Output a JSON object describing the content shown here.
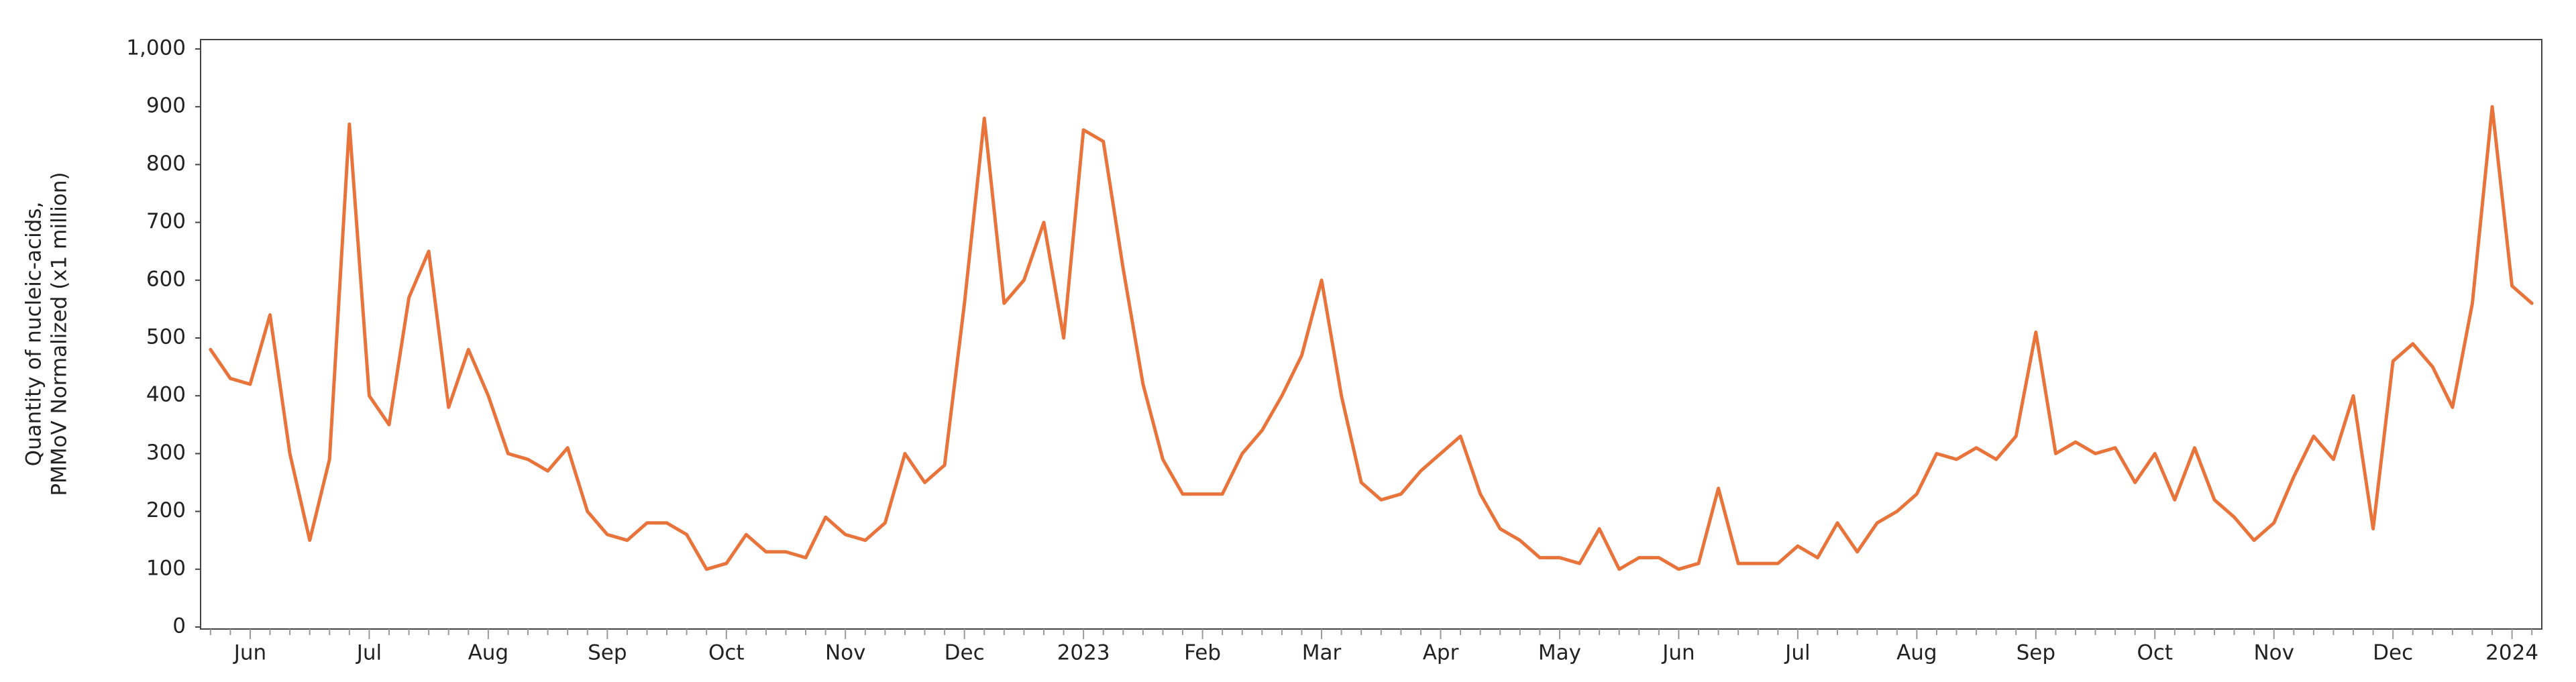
{
  "chart_data": {
    "type": "line",
    "ylabel": [
      "Quantity of nucleic-acids,",
      "PMMoV Normalized (x1 million)"
    ],
    "categories": [
      null,
      null,
      "Jun",
      null,
      null,
      null,
      null,
      null,
      "Jul",
      null,
      null,
      null,
      null,
      null,
      "Aug",
      null,
      null,
      null,
      null,
      null,
      "Sep",
      null,
      null,
      null,
      null,
      null,
      "Oct",
      null,
      null,
      null,
      null,
      null,
      "Nov",
      null,
      null,
      null,
      null,
      null,
      "Dec",
      null,
      null,
      null,
      null,
      null,
      "2023",
      null,
      null,
      null,
      null,
      null,
      "Feb",
      null,
      null,
      null,
      null,
      null,
      "Mar",
      null,
      null,
      null,
      null,
      null,
      "Apr",
      null,
      null,
      null,
      null,
      null,
      "May",
      null,
      null,
      null,
      null,
      null,
      "Jun",
      null,
      null,
      null,
      null,
      null,
      "Jul",
      null,
      null,
      null,
      null,
      null,
      "Aug",
      null,
      null,
      null,
      null,
      null,
      "Sep",
      null,
      null,
      null,
      null,
      null,
      "Oct",
      null,
      null,
      null,
      null,
      null,
      "Nov",
      null,
      null,
      null,
      null,
      null,
      "Dec",
      null,
      null,
      null,
      null,
      null,
      "2024",
      null
    ],
    "series": [
      {
        "color": "#e8743b",
        "values": [
          480,
          430,
          420,
          540,
          300,
          150,
          290,
          870,
          400,
          350,
          570,
          650,
          380,
          480,
          400,
          300,
          290,
          270,
          310,
          200,
          160,
          150,
          180,
          180,
          160,
          100,
          110,
          160,
          130,
          130,
          120,
          190,
          160,
          150,
          180,
          300,
          250,
          280,
          560,
          880,
          560,
          600,
          700,
          500,
          860,
          840,
          620,
          420,
          290,
          230,
          230,
          230,
          300,
          340,
          400,
          470,
          600,
          400,
          250,
          220,
          230,
          270,
          300,
          330,
          230,
          170,
          150,
          120,
          120,
          110,
          170,
          100,
          120,
          120,
          100,
          110,
          240,
          110,
          110,
          110,
          140,
          120,
          180,
          130,
          180,
          200,
          230,
          300,
          290,
          310,
          290,
          330,
          510,
          300,
          320,
          300,
          310,
          250,
          300,
          220,
          310,
          220,
          190,
          150,
          180,
          260,
          330,
          290,
          400,
          170,
          460,
          490,
          450,
          380,
          560,
          900,
          590,
          560
        ]
      }
    ],
    "ylim": [
      0,
      1000
    ],
    "yticks": [
      0,
      100,
      200,
      300,
      400,
      500,
      600,
      700,
      800,
      900,
      {
        "value": 1000,
        "label": "1,000"
      }
    ],
    "grid": false
  }
}
